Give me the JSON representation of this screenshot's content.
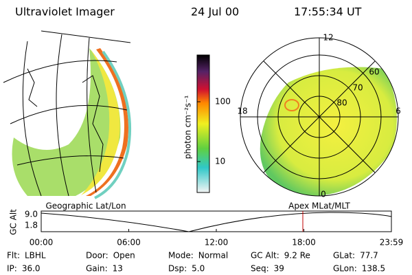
{
  "header": {
    "instrument": "Ultraviolet Imager",
    "date": "24 Jul 00",
    "time": "17:55:34 UT"
  },
  "colorbar": {
    "label": "photon cm⁻²s⁻¹",
    "ticks": [
      "100",
      "10"
    ]
  },
  "polar_plot": {
    "mlt_labels": {
      "top": "12",
      "left": "18",
      "right": "6",
      "bottom": "0"
    },
    "lat_labels": [
      "60",
      "70",
      "80"
    ]
  },
  "altitude_plot": {
    "left_title": "Geographic Lat/Lon",
    "right_title": "Apex MLat/MLT",
    "ylabel": "GC Alt",
    "yticks": [
      "9.0",
      "1.8"
    ],
    "xticks": [
      "00:00",
      "06:00",
      "12:00",
      "18:00",
      "23:59"
    ]
  },
  "footer": {
    "rows": [
      [
        [
          "Flt:",
          "LBHL"
        ],
        [
          "Door:",
          "Open"
        ],
        [
          "Mode:",
          "Normal"
        ],
        [
          "GC Alt:",
          "9.2 Re"
        ],
        [
          "GLat:",
          "77.7"
        ]
      ],
      [
        [
          "IP:",
          "36.0"
        ],
        [
          "Gain:",
          "13"
        ],
        [
          "Dsp:",
          "5.0"
        ],
        [
          "Seq:",
          "39"
        ],
        [
          "GLon:",
          "138.5"
        ]
      ]
    ]
  }
}
